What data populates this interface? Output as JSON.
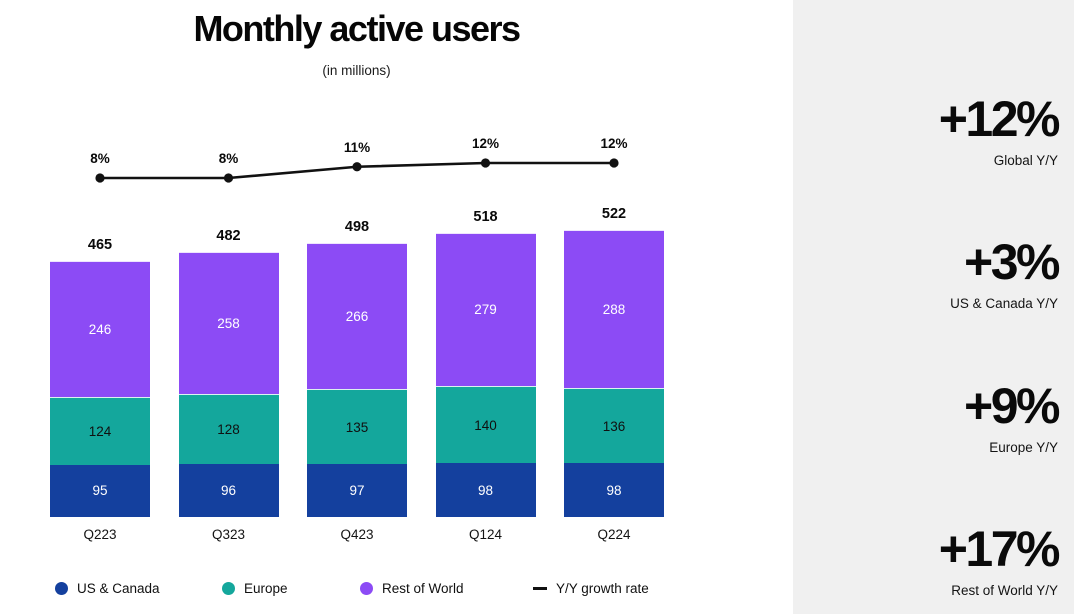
{
  "chart": {
    "title": "Monthly active users",
    "subtitle": "(in millions)"
  },
  "chart_data": {
    "type": "stacked-bar-with-line",
    "title": "Monthly active users",
    "subtitle": "(in millions)",
    "categories": [
      "Q223",
      "Q323",
      "Q423",
      "Q124",
      "Q224"
    ],
    "series": [
      {
        "key": "us-canada",
        "name": "US & Canada",
        "color": "#14409E",
        "value_color": "#ffffff",
        "values": [
          95,
          96,
          97,
          98,
          98
        ]
      },
      {
        "key": "europe",
        "name": "Europe",
        "color": "#14A79C",
        "value_color": "#101010",
        "values": [
          124,
          128,
          135,
          140,
          136
        ]
      },
      {
        "key": "rest-of-world",
        "name": "Rest of World",
        "color": "#8C4BF5",
        "value_color": "#ffffff",
        "values": [
          246,
          258,
          266,
          279,
          288
        ]
      }
    ],
    "totals": [
      465,
      482,
      498,
      518,
      522
    ],
    "line": {
      "name": "Y/Y growth rate",
      "color": "#111111",
      "unit": "%",
      "values": [
        8,
        8,
        11,
        12,
        12
      ]
    },
    "legend_position": "bottom",
    "grid": false,
    "xlabel": "",
    "ylabel": ""
  },
  "sidebar": {
    "background": "#f0f0f0",
    "stats": [
      {
        "value": "+12%",
        "label": "Global Y/Y"
      },
      {
        "value": "+3%",
        "label": "US & Canada Y/Y"
      },
      {
        "value": "+9%",
        "label": "Europe Y/Y"
      },
      {
        "value": "+17%",
        "label": "Rest of World Y/Y"
      }
    ]
  }
}
